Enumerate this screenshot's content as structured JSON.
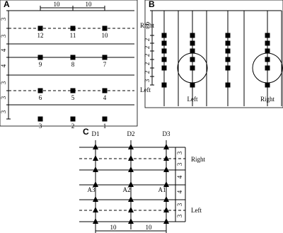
{
  "panels": [
    {
      "label": "A"
    },
    {
      "label": "B"
    },
    {
      "label": "C"
    }
  ],
  "panel_a": {
    "spacing": [
      "10",
      "10"
    ],
    "dims": [
      "3",
      "3",
      "4",
      "4",
      "3",
      "3",
      "3"
    ],
    "sensors": [
      "12",
      "11",
      "10",
      "9",
      "8",
      "7",
      "6",
      "5",
      "4",
      "3",
      "2",
      "1"
    ],
    "zones": [
      "Right",
      "Left"
    ]
  },
  "panel_b": {
    "dims": [
      "6",
      "2",
      "2",
      "2",
      "2",
      "2",
      "3"
    ],
    "zones": [
      "Left",
      "Right"
    ]
  },
  "panel_c": {
    "columns": [
      "D1",
      "D2",
      "D3"
    ],
    "anchors": [
      "A3",
      "A2",
      "A1"
    ],
    "dims": [
      "3",
      "3",
      "4",
      "4",
      "3",
      "3"
    ],
    "zones": [
      "Right",
      "Left"
    ],
    "spacing": [
      "10",
      "10"
    ]
  }
}
